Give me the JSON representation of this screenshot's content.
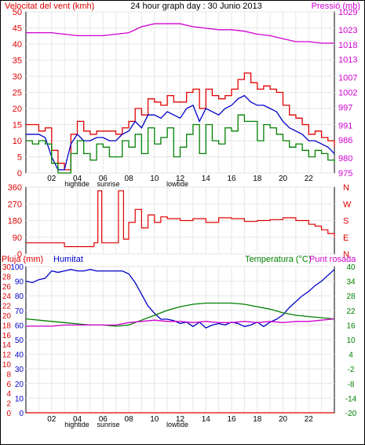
{
  "header": {
    "left_label": "Velocitat del vent (kmh)",
    "title": "24 hour graph day : 30 Junio 2013",
    "right_label": "Pressió (mb)"
  },
  "footer_tide_labels": [
    "hightide",
    "sunrise",
    "lowtide"
  ],
  "colors": {
    "red": "#e00000",
    "blue": "#0000c8",
    "green": "#008000",
    "magenta": "#d000d0",
    "grid": "#e6e6e6",
    "frame": "#000000"
  },
  "chart_data": [
    {
      "type": "line",
      "name": "wind-and-pressure",
      "title": "24 hour graph day : 30 Junio 2013",
      "ylabel_left": "Velocitat del vent (kmh)",
      "ylabel_right": "Pressió (mb)",
      "x_tick_labels": [
        "02",
        "04",
        "06",
        "08",
        "10",
        "12",
        "14",
        "16",
        "18",
        "20",
        "22"
      ],
      "x_range_hours": [
        0,
        24
      ],
      "ylim_left": [
        0,
        50
      ],
      "y_ticks_left": [
        0,
        5,
        10,
        15,
        20,
        25,
        30,
        35,
        40,
        45,
        50
      ],
      "ylim_right": [
        975,
        1029
      ],
      "y_ticks_right": [
        975,
        980,
        986,
        991,
        997,
        1002,
        1007,
        1013,
        1018,
        1023,
        1029
      ],
      "grid": true,
      "series": [
        {
          "axis": "left",
          "color": "red",
          "step": true,
          "x": [
            0,
            0.5,
            1,
            1.5,
            2,
            2.5,
            3,
            3.5,
            4,
            4.5,
            5,
            5.5,
            6,
            6.5,
            7,
            7.5,
            8,
            8.5,
            9,
            9.5,
            10,
            10.5,
            11,
            11.5,
            12,
            12.5,
            13,
            13.5,
            14,
            14.5,
            15,
            15.5,
            16,
            16.5,
            17,
            17.5,
            18,
            18.5,
            19,
            19.5,
            20,
            20.5,
            21,
            21.5,
            22,
            22.5,
            23,
            23.5,
            24
          ],
          "y": [
            15,
            15,
            13,
            14,
            7,
            3,
            1,
            12,
            16,
            13,
            12,
            13,
            13,
            13,
            12,
            14,
            16,
            20,
            18,
            23,
            22,
            21,
            24,
            22,
            22,
            25,
            26,
            20,
            26,
            24,
            23,
            24,
            26,
            29,
            31,
            28,
            26,
            27,
            26,
            25,
            21,
            18,
            17,
            15,
            12,
            13,
            11,
            10,
            8
          ]
        },
        {
          "axis": "left",
          "color": "blue",
          "step": false,
          "x": [
            0,
            0.5,
            1,
            1.5,
            2,
            2.5,
            3,
            3.5,
            4,
            4.5,
            5,
            5.5,
            6,
            6.5,
            7,
            7.5,
            8,
            8.5,
            9,
            9.5,
            10,
            10.5,
            11,
            11.5,
            12,
            12.5,
            13,
            13.5,
            14,
            14.5,
            15,
            15.5,
            16,
            16.5,
            17,
            17.5,
            18,
            18.5,
            19,
            19.5,
            20,
            20.5,
            21,
            21.5,
            22,
            22.5,
            23,
            23.5,
            24
          ],
          "y": [
            12,
            12,
            12,
            11,
            5,
            1,
            1,
            9,
            12,
            10,
            10,
            11,
            11,
            10,
            10,
            12,
            13,
            16,
            14,
            18,
            18,
            17,
            19,
            18,
            17,
            20,
            21,
            16,
            20,
            19,
            18,
            20,
            21,
            23,
            24,
            22,
            21,
            21,
            20,
            19,
            16,
            14,
            13,
            12,
            10,
            10,
            9,
            8,
            6
          ]
        },
        {
          "axis": "left",
          "color": "green",
          "step": true,
          "x": [
            0,
            0.5,
            1,
            1.5,
            2,
            2.5,
            3,
            3.5,
            4,
            4.5,
            5,
            5.5,
            6,
            6.5,
            7,
            7.5,
            8,
            8.5,
            9,
            9.5,
            10,
            10.5,
            11,
            11.5,
            12,
            12.5,
            13,
            13.5,
            14,
            14.5,
            15,
            15.5,
            16,
            16.5,
            17,
            17.5,
            18,
            18.5,
            19,
            19.5,
            20,
            20.5,
            21,
            21.5,
            22,
            22.5,
            23,
            23.5,
            24
          ],
          "y": [
            10,
            9,
            10,
            9,
            3,
            0,
            0,
            6,
            10,
            6,
            4,
            9,
            8,
            5,
            5,
            10,
            8,
            12,
            6,
            14,
            9,
            11,
            14,
            5,
            8,
            12,
            15,
            6,
            15,
            10,
            9,
            14,
            13,
            18,
            16,
            16,
            10,
            15,
            14,
            12,
            10,
            8,
            9,
            7,
            5,
            7,
            6,
            4,
            3
          ]
        },
        {
          "axis": "right",
          "color": "magenta",
          "step": false,
          "x": [
            0,
            1,
            2,
            3,
            4,
            5,
            6,
            7,
            8,
            9,
            10,
            11,
            12,
            13,
            14,
            15,
            16,
            17,
            18,
            19,
            20,
            21,
            22,
            23,
            24
          ],
          "y": [
            1022,
            1022,
            1022,
            1021.5,
            1021,
            1021,
            1021,
            1021.5,
            1022,
            1024,
            1025,
            1025,
            1025,
            1024,
            1023.5,
            1023,
            1023,
            1022.5,
            1021.5,
            1021,
            1020,
            1019,
            1019,
            1018.5,
            1018.5
          ]
        }
      ]
    },
    {
      "type": "line",
      "name": "wind-direction",
      "ylim": [
        0,
        360
      ],
      "y_ticks": [
        0,
        90,
        180,
        270,
        360
      ],
      "right_labels": [
        "N",
        "W",
        "S",
        "E",
        "N"
      ],
      "grid": true,
      "series": [
        {
          "color": "red",
          "step": true,
          "x": [
            0,
            2.5,
            3,
            5.3,
            5.6,
            5.9,
            6.3,
            7.2,
            7.6,
            8,
            8.5,
            9,
            9.5,
            10,
            10.5,
            11,
            12,
            13,
            14,
            15,
            16,
            17,
            18,
            19,
            20,
            21,
            22,
            22.5,
            23,
            23.5,
            24
          ],
          "y": [
            60,
            60,
            40,
            60,
            340,
            60,
            60,
            340,
            80,
            170,
            240,
            140,
            210,
            170,
            200,
            190,
            180,
            190,
            170,
            195,
            190,
            175,
            180,
            185,
            195,
            180,
            160,
            150,
            130,
            110,
            90
          ]
        }
      ]
    },
    {
      "type": "line",
      "name": "rain-humidity-temperature",
      "ylabel_left": "Pluja (mm)",
      "ylabel_left2": "Humitat",
      "ylabel_right": "Temperatura (°C)",
      "ylabel_right2": "Punt rosada",
      "x_tick_labels": [
        "02",
        "04",
        "06",
        "08",
        "10",
        "12",
        "14",
        "16",
        "18",
        "20",
        "22"
      ],
      "x_range_hours": [
        0,
        24
      ],
      "ylim_pluja": [
        0,
        30
      ],
      "y_ticks_pluja": [
        0,
        2,
        4,
        6,
        8,
        10,
        12,
        14,
        16,
        18,
        20,
        22,
        24,
        26,
        28,
        30
      ],
      "ylim_humitat": [
        0,
        100
      ],
      "y_ticks_humitat": [
        0,
        10,
        20,
        30,
        40,
        50,
        60,
        70,
        80,
        90,
        100
      ],
      "ylim_temp": [
        -20,
        40
      ],
      "y_ticks_temp": [
        -20,
        -14,
        -8,
        -2,
        4,
        10,
        16,
        22,
        28,
        34,
        40
      ],
      "grid": true,
      "series": [
        {
          "axis": "humitat",
          "color": "blue",
          "step": false,
          "x": [
            0,
            0.5,
            1,
            1.5,
            2,
            2.5,
            3,
            3.5,
            4,
            4.5,
            5,
            5.5,
            6,
            6.5,
            7,
            7.5,
            8,
            8.5,
            9,
            9.5,
            10,
            10.5,
            11,
            11.5,
            12,
            12.5,
            13,
            13.5,
            14,
            14.5,
            15,
            15.5,
            16,
            16.5,
            17,
            17.5,
            18,
            18.5,
            19,
            19.5,
            20,
            20.5,
            21,
            21.5,
            22,
            22.5,
            23,
            23.5,
            24
          ],
          "y": [
            90,
            89,
            91,
            92,
            97,
            96,
            97,
            98,
            97,
            97,
            98,
            97,
            97,
            97,
            97,
            97,
            95,
            89,
            81,
            73,
            68,
            64,
            64,
            63,
            61,
            62,
            59,
            62,
            58,
            60,
            61,
            60,
            62,
            61,
            59,
            60,
            62,
            59,
            62,
            64,
            67,
            72,
            76,
            80,
            83,
            87,
            90,
            94,
            98
          ]
        },
        {
          "axis": "temp",
          "color": "green",
          "step": false,
          "x": [
            0,
            1,
            2,
            3,
            4,
            5,
            6,
            7,
            8,
            9,
            10,
            11,
            12,
            13,
            14,
            15,
            16,
            17,
            18,
            19,
            20,
            21,
            22,
            23,
            24
          ],
          "y": [
            18.5,
            18,
            17.5,
            17,
            16.5,
            16,
            16,
            15.5,
            16,
            18,
            20,
            22,
            23.5,
            24.5,
            25,
            25,
            25,
            24.5,
            23.5,
            22.5,
            21,
            20,
            19.5,
            19,
            18.5
          ]
        },
        {
          "axis": "temp",
          "color": "magenta",
          "step": false,
          "x": [
            0,
            1,
            2,
            3,
            4,
            5,
            6,
            7,
            8,
            9,
            10,
            11,
            12,
            13,
            14,
            15,
            16,
            17,
            18,
            19,
            20,
            21,
            22,
            23,
            24
          ],
          "y": [
            15.5,
            15.5,
            15.5,
            16,
            16,
            16,
            16,
            16,
            17,
            17.5,
            18,
            17.5,
            17.5,
            17,
            17.5,
            17,
            17,
            17.5,
            17,
            17.5,
            17,
            17.5,
            17.5,
            18,
            18.5
          ]
        },
        {
          "axis": "pluja",
          "color": "red",
          "step": false,
          "x": [
            0,
            24
          ],
          "y": [
            0,
            0
          ]
        }
      ]
    }
  ]
}
